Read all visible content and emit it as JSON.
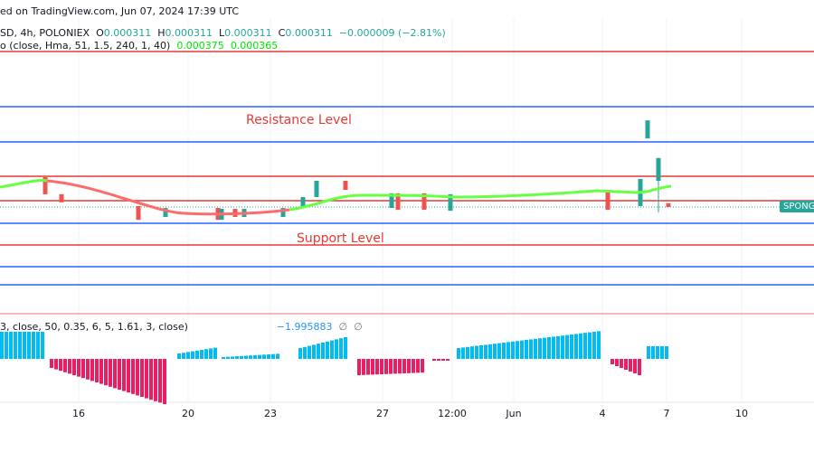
{
  "header": {
    "published": "ed on TradingView.com, Jun 07, 2024 17:39 UTC",
    "symbol": "SD, 4h, POLONIEX",
    "o_label": "O",
    "o": "0.000311",
    "h_label": "H",
    "h": "0.000311",
    "l_label": "L",
    "l": "0.000311",
    "c_label": "C",
    "c": "0.000311",
    "change": "−0.000009 (−2.81%)",
    "ma_name": "o (close, Hma, 51, 1.5, 240, 1, 40)",
    "ma_v1": "0.000375",
    "ma_v2": "0.000365",
    "osc_name": "3, close, 50, 0.35, 6, 5, 1.61, 3, close)",
    "osc_value": "−1.995883",
    "osc_na1": "∅",
    "osc_na2": "∅"
  },
  "price_tag": "SPONG",
  "colors": {
    "up": "#26a69a",
    "down": "#ef5350",
    "ma_up": "#66ff44",
    "ma_down": "#ff6b6b",
    "hist_pos": "#00bcf2",
    "hist_neg": "#e91e63",
    "support_resistance_red": "#e53935",
    "blue_line": "#2962ff"
  },
  "chart_data": {
    "type": "candlestick",
    "annotations": [
      "Resistance Level",
      "Support Level"
    ],
    "x_ticks": [
      "16",
      "20",
      "23",
      "27",
      "12:00",
      "Jun",
      "4",
      "7",
      "10"
    ],
    "candles": [
      {
        "o": 0.000407,
        "c": 0.000352
      },
      {
        "o": 0.000352,
        "c": 0.000326
      },
      {
        "o": 0.000314,
        "c": 0.00027
      },
      {
        "o": 0.000279,
        "c": 0.000308
      },
      {
        "o": 0.000308,
        "c": 0.00027
      },
      {
        "o": 0.00027,
        "c": 0.000305
      },
      {
        "o": 0.000305,
        "c": 0.000279
      },
      {
        "o": 0.000279,
        "c": 0.000305
      },
      {
        "o": 0.000279,
        "c": 0.000308
      },
      {
        "o": 0.000308,
        "c": 0.000343
      },
      {
        "o": 0.000343,
        "c": 0.000395
      },
      {
        "o": 0.000395,
        "c": 0.000366
      },
      {
        "o": 0.000308,
        "c": 0.000355
      },
      {
        "o": 0.000355,
        "c": 0.000302
      },
      {
        "o": 0.000355,
        "c": 0.000302
      },
      {
        "o": 0.000299,
        "c": 0.000352
      },
      {
        "o": 0.000366,
        "c": 0.000302
      },
      {
        "o": 0.000314,
        "c": 0.000401
      },
      {
        "o": 0.000531,
        "c": 0.000589
      },
      {
        "o": 0.000395,
        "c": 0.000468,
        "l": 0.000294
      },
      {
        "o": 0.000323,
        "c": 0.000311
      }
    ],
    "oscillator_last": -1.995883
  }
}
